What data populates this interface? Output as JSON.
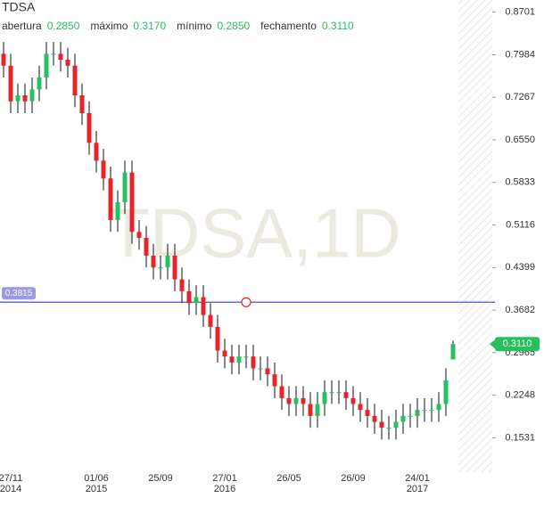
{
  "chart_data": {
    "type": "candlestick",
    "title": "TDSA",
    "watermark": "TDSA,1D",
    "ohlc_legend": [
      {
        "name": "abertura",
        "value": "0.2850"
      },
      {
        "name": "máximo",
        "value": "0.3170"
      },
      {
        "name": "mínimo",
        "value": "0.2850"
      },
      {
        "name": "fechamento",
        "value": "0.3110"
      }
    ],
    "categories": [
      null,
      "27/11",
      null,
      null,
      null,
      null,
      null,
      null,
      null,
      null,
      null,
      null,
      null,
      "01/06",
      null,
      null,
      null,
      null,
      null,
      null,
      null,
      null,
      "25/09",
      null,
      null,
      null,
      null,
      null,
      null,
      null,
      null,
      "27/01",
      null,
      null,
      null,
      null,
      null,
      null,
      null,
      null,
      "26/05",
      null,
      null,
      null,
      null,
      null,
      null,
      null,
      null,
      "26/09",
      null,
      null,
      null,
      null,
      null,
      null,
      null,
      null,
      "24/01",
      null,
      null,
      null,
      null,
      null
    ],
    "category_years": [
      null,
      "2014",
      null,
      null,
      null,
      null,
      null,
      null,
      null,
      null,
      null,
      null,
      null,
      "2015",
      null,
      null,
      null,
      null,
      null,
      null,
      null,
      null,
      null,
      null,
      null,
      null,
      null,
      null,
      null,
      null,
      null,
      "2016",
      null,
      null,
      null,
      null,
      null,
      null,
      null,
      null,
      null,
      null,
      null,
      null,
      null,
      null,
      null,
      null,
      null,
      null,
      null,
      null,
      null,
      null,
      null,
      null,
      null,
      null,
      "2017",
      null,
      null,
      null,
      null,
      null
    ],
    "open": [
      0.8,
      0.78,
      0.72,
      0.73,
      0.72,
      0.74,
      0.76,
      0.8,
      0.8,
      0.79,
      0.78,
      0.73,
      0.7,
      0.65,
      0.62,
      0.59,
      0.52,
      0.55,
      0.6,
      0.5,
      0.49,
      0.46,
      0.44,
      0.44,
      0.46,
      0.42,
      0.4,
      0.38,
      0.39,
      0.36,
      0.34,
      0.3,
      0.29,
      0.28,
      0.29,
      0.29,
      0.27,
      0.27,
      0.26,
      0.24,
      0.22,
      0.21,
      0.22,
      0.21,
      0.19,
      0.21,
      0.23,
      0.23,
      0.23,
      0.22,
      0.21,
      0.2,
      0.19,
      0.18,
      0.17,
      0.17,
      0.18,
      0.19,
      0.19,
      0.2,
      0.2,
      0.2,
      0.21,
      0.285
    ],
    "high": [
      0.82,
      0.8,
      0.75,
      0.75,
      0.76,
      0.78,
      0.82,
      0.82,
      0.82,
      0.81,
      0.8,
      0.75,
      0.72,
      0.67,
      0.64,
      0.61,
      0.57,
      0.62,
      0.62,
      0.52,
      0.51,
      0.48,
      0.46,
      0.48,
      0.48,
      0.44,
      0.42,
      0.41,
      0.41,
      0.38,
      0.36,
      0.32,
      0.31,
      0.31,
      0.31,
      0.31,
      0.29,
      0.29,
      0.28,
      0.26,
      0.24,
      0.24,
      0.24,
      0.23,
      0.23,
      0.25,
      0.25,
      0.25,
      0.25,
      0.24,
      0.23,
      0.22,
      0.21,
      0.2,
      0.19,
      0.2,
      0.21,
      0.21,
      0.22,
      0.22,
      0.22,
      0.23,
      0.27,
      0.317
    ],
    "low": [
      0.76,
      0.7,
      0.7,
      0.7,
      0.7,
      0.72,
      0.74,
      0.78,
      0.77,
      0.76,
      0.71,
      0.68,
      0.63,
      0.6,
      0.57,
      0.5,
      0.5,
      0.53,
      0.48,
      0.47,
      0.44,
      0.42,
      0.42,
      0.42,
      0.4,
      0.38,
      0.36,
      0.36,
      0.34,
      0.32,
      0.28,
      0.27,
      0.26,
      0.26,
      0.27,
      0.25,
      0.25,
      0.24,
      0.22,
      0.2,
      0.19,
      0.19,
      0.19,
      0.17,
      0.17,
      0.19,
      0.21,
      0.21,
      0.2,
      0.19,
      0.18,
      0.17,
      0.16,
      0.15,
      0.15,
      0.15,
      0.16,
      0.17,
      0.17,
      0.18,
      0.18,
      0.18,
      0.19,
      0.285
    ],
    "close": [
      0.78,
      0.72,
      0.73,
      0.72,
      0.74,
      0.76,
      0.8,
      0.8,
      0.79,
      0.78,
      0.73,
      0.7,
      0.65,
      0.62,
      0.59,
      0.52,
      0.55,
      0.6,
      0.5,
      0.49,
      0.46,
      0.44,
      0.44,
      0.46,
      0.42,
      0.4,
      0.38,
      0.39,
      0.36,
      0.34,
      0.3,
      0.29,
      0.28,
      0.29,
      0.29,
      0.27,
      0.27,
      0.26,
      0.24,
      0.22,
      0.21,
      0.22,
      0.21,
      0.19,
      0.21,
      0.23,
      0.23,
      0.23,
      0.22,
      0.21,
      0.2,
      0.19,
      0.18,
      0.17,
      0.17,
      0.18,
      0.19,
      0.19,
      0.2,
      0.2,
      0.2,
      0.21,
      0.25,
      0.311
    ],
    "up_color": "#26c05f",
    "down_color": "#e3242b",
    "ylim": [
      0.0682,
      0.8906
    ],
    "yticks": [
      0.8701,
      0.7984,
      0.7267,
      {
        "value": 0.655,
        "label": "0.6550"
      },
      0.5833,
      0.5116,
      0.4399,
      0.3682,
      0.2965,
      0.2248,
      0.1531
    ],
    "hline": 0.3815,
    "hline_color": "#6a6ad8",
    "last_price": {
      "value": 0.311,
      "label": "0.3110"
    }
  }
}
